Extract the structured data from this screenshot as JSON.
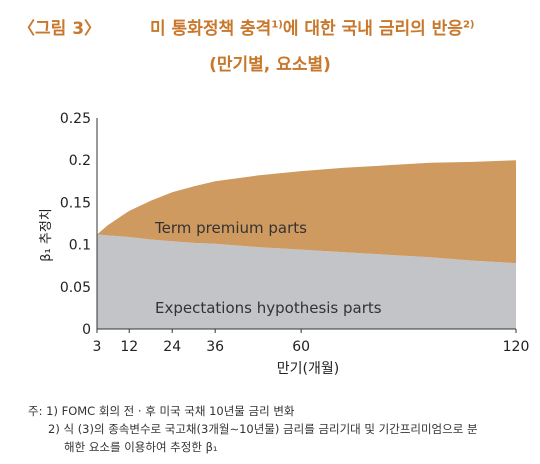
{
  "figure_label": "〈그림 3〉",
  "title": {
    "part1": "미 통화정책 충격",
    "sup1": "1)",
    "part2": "에 대한 국내 금리의 반응",
    "sup2": "2)"
  },
  "subtitle": "(만기별, 요소별)",
  "notes": {
    "prefix": "주:",
    "note1": "1) FOMC 회의 전 · 후 미국 국채 10년물 금리 변화",
    "note2a": "2) 식 (3)의 종속변수로 국고채(3개월∼10년물) 금리를 금리기대 및 기간프리미엄으로 분",
    "note2b": "해한 요소를 이용하여 추정한 β₁"
  },
  "chart_data": {
    "type": "area",
    "stacked": true,
    "xlabel": "만기(개월)",
    "ylabel": "β₁ 추정치",
    "xlim": [
      3,
      120
    ],
    "ylim": [
      0,
      0.25
    ],
    "xticks": [
      3,
      12,
      24,
      36,
      60,
      120
    ],
    "yticks": [
      "0",
      "0.05",
      "0.1",
      "0.15",
      "0.2",
      "0.25"
    ],
    "ytick_values": [
      0,
      0.05,
      0.1,
      0.15,
      0.2,
      0.25
    ],
    "x": [
      3,
      6,
      12,
      18,
      24,
      30,
      36,
      48,
      60,
      72,
      84,
      96,
      108,
      120
    ],
    "series": [
      {
        "name": "Expectations hypothesis parts",
        "color": "#c3c4c8",
        "values": [
          0.112,
          0.111,
          0.109,
          0.106,
          0.104,
          0.102,
          0.101,
          0.097,
          0.094,
          0.091,
          0.088,
          0.085,
          0.081,
          0.078
        ]
      },
      {
        "name": "Term premium parts",
        "color": "#cf9a60",
        "values": [
          0.0,
          0.012,
          0.031,
          0.046,
          0.058,
          0.067,
          0.074,
          0.085,
          0.093,
          0.1,
          0.106,
          0.112,
          0.117,
          0.122
        ]
      }
    ]
  }
}
